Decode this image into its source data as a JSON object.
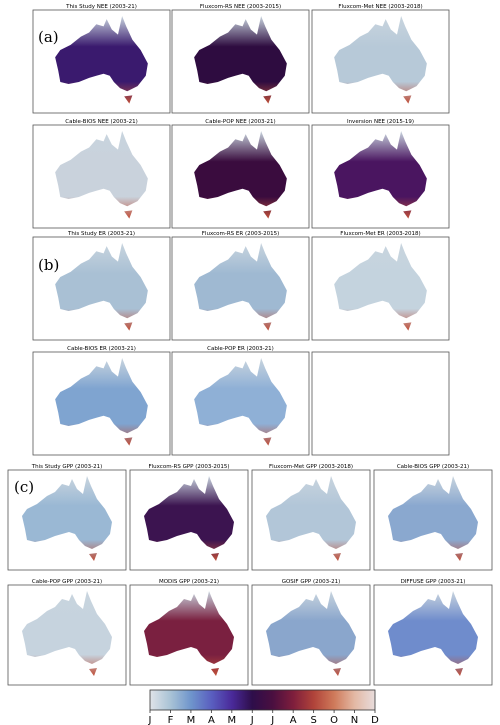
{
  "sections": [
    {
      "label": "(a)",
      "panels": [
        {
          "title": "This Study NEE (2003-21)",
          "color": "#3a1a6e"
        },
        {
          "title": "Fluxcom-RS NEE (2003-2015)",
          "color": "#2e0c40"
        },
        {
          "title": "Fluxcom-Met NEE (2003-2018)",
          "color": "#b7c9d8"
        },
        {
          "title": "Cable-BIOS NEE (2003-21)",
          "color": "#c9d2dc"
        },
        {
          "title": "Cable-POP NEE (2003-21)",
          "color": "#3a0c3e"
        },
        {
          "title": "Inversion NEE (2015-19)",
          "color": "#4a1560"
        }
      ]
    },
    {
      "label": "(b)",
      "panels": [
        {
          "title": "This Study ER (2003-21)",
          "color": "#a9c0d4"
        },
        {
          "title": "Fluxcom-RS ER (2003-2015)",
          "color": "#9fb9d2"
        },
        {
          "title": "Fluxcom-Met ER (2003-2018)",
          "color": "#c4d3de"
        },
        {
          "title": "Cable-BIOS ER (2003-21)",
          "color": "#7fa4d0"
        },
        {
          "title": "Cable-POP ER (2003-21)",
          "color": "#8fb0d6"
        }
      ]
    },
    {
      "label": "(c)",
      "panels": [
        {
          "title": "This Study GPP (2003-21)",
          "color": "#9ab8d4"
        },
        {
          "title": "Fluxcom-RS GPP (2003-2015)",
          "color": "#3c1450"
        },
        {
          "title": "Fluxcom-Met GPP (2003-2018)",
          "color": "#b2c6d8"
        },
        {
          "title": "Cable-BIOS GPP (2003-21)",
          "color": "#8aa8cf"
        },
        {
          "title": "Cable-POP GPP (2003-21)",
          "color": "#c6d3de"
        },
        {
          "title": "MODIS GPP (2003-21)",
          "color": "#7a2040"
        },
        {
          "title": "GOSIF GPP (2003-21)",
          "color": "#8aa6cc"
        },
        {
          "title": "DIFFUSE GPP (2003-21)",
          "color": "#6f8ccc"
        }
      ]
    }
  ],
  "colorbar": {
    "labels": [
      "J",
      "F",
      "M",
      "A",
      "M",
      "J",
      "J",
      "A",
      "S",
      "O",
      "N",
      "D"
    ],
    "colors": [
      "#e0e3e8",
      "#a9c3d6",
      "#6f95cc",
      "#5a5fc0",
      "#4a2a9a",
      "#2e0e4a",
      "#4a0f40",
      "#7e1e3c",
      "#b0433a",
      "#cf7a5a",
      "#e3b8a4",
      "#e8dcdc"
    ]
  }
}
